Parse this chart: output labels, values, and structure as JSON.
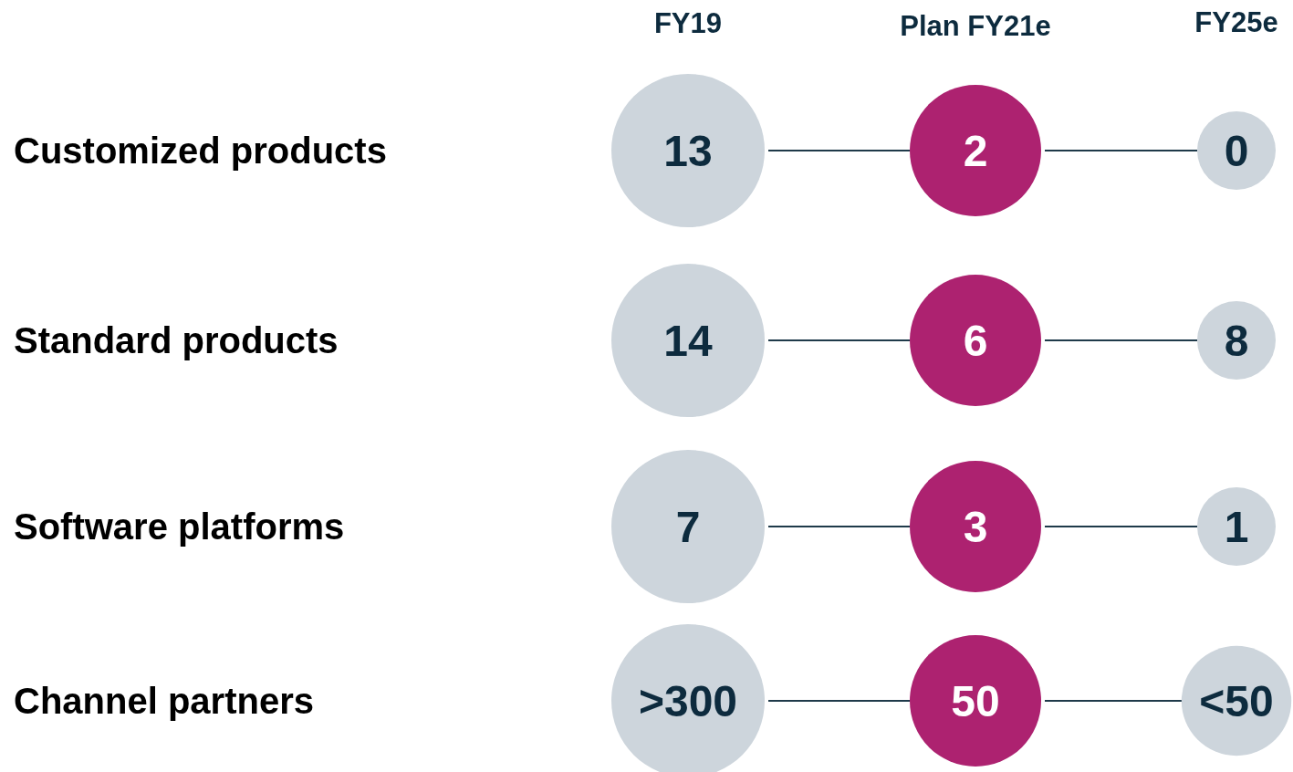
{
  "chart_data": {
    "type": "other",
    "data_labels": true,
    "categories": [
      "Customized products",
      "Standard products",
      "Software platforms",
      "Channel partners"
    ],
    "series": [
      {
        "name": "FY19",
        "color": "#cdd5dc",
        "values": [
          13,
          14,
          7,
          300
        ],
        "value_labels": [
          "13",
          "14",
          "7",
          ">300"
        ]
      },
      {
        "name": "Plan FY21e",
        "color": "#ad2270",
        "values": [
          2,
          6,
          3,
          50
        ]
      },
      {
        "name": "FY25e",
        "color": "#cdd5dc",
        "values": [
          0,
          8,
          1,
          50
        ],
        "value_labels": [
          "0",
          "8",
          "1",
          "<50"
        ]
      }
    ]
  }
}
